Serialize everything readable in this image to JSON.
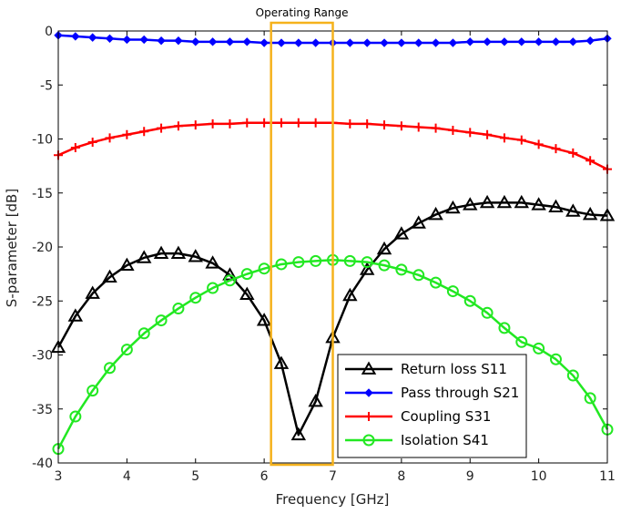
{
  "chart_data": {
    "type": "line",
    "title": "",
    "xlabel": "Frequency [GHz]",
    "ylabel": "S-parameter [dB]",
    "xlim": [
      3,
      11
    ],
    "ylim": [
      -40,
      0
    ],
    "xticks": [
      3,
      4,
      5,
      6,
      7,
      8,
      9,
      10,
      11
    ],
    "yticks": [
      0,
      -5,
      -10,
      -15,
      -20,
      -25,
      -30,
      -35,
      -40
    ],
    "grid": false,
    "legend_position": "bottom-right",
    "annotation": {
      "label": "Operating Range",
      "x_range": [
        6.1,
        7.0
      ],
      "color": "#f5b21c"
    },
    "series": [
      {
        "name": "Return loss S11",
        "color": "#000000",
        "marker": "triangle",
        "x": [
          3.0,
          3.25,
          3.5,
          3.75,
          4.0,
          4.25,
          4.5,
          4.75,
          5.0,
          5.25,
          5.5,
          5.75,
          6.0,
          6.25,
          6.5,
          6.75,
          7.0,
          7.25,
          7.5,
          7.75,
          8.0,
          8.25,
          8.5,
          8.75,
          9.0,
          9.25,
          9.5,
          9.75,
          10.0,
          10.25,
          10.5,
          10.75,
          11.0
        ],
        "y": [
          -29.3,
          -26.4,
          -24.3,
          -22.8,
          -21.7,
          -21.0,
          -20.6,
          -20.6,
          -20.9,
          -21.5,
          -22.6,
          -24.4,
          -26.8,
          -30.8,
          -37.4,
          -34.3,
          -28.4,
          -24.5,
          -22.1,
          -20.2,
          -18.8,
          -17.8,
          -17.0,
          -16.4,
          -16.1,
          -15.9,
          -15.9,
          -15.9,
          -16.1,
          -16.3,
          -16.7,
          -17.0,
          -17.1
        ]
      },
      {
        "name": "Pass through S21",
        "color": "#0000ff",
        "marker": "diamond",
        "x": [
          3.0,
          3.25,
          3.5,
          3.75,
          4.0,
          4.25,
          4.5,
          4.75,
          5.0,
          5.25,
          5.5,
          5.75,
          6.0,
          6.25,
          6.5,
          6.75,
          7.0,
          7.25,
          7.5,
          7.75,
          8.0,
          8.25,
          8.5,
          8.75,
          9.0,
          9.25,
          9.5,
          9.75,
          10.0,
          10.25,
          10.5,
          10.75,
          11.0
        ],
        "y": [
          -0.4,
          -0.5,
          -0.6,
          -0.7,
          -0.8,
          -0.8,
          -0.9,
          -0.9,
          -1.0,
          -1.0,
          -1.0,
          -1.0,
          -1.1,
          -1.1,
          -1.1,
          -1.1,
          -1.1,
          -1.1,
          -1.1,
          -1.1,
          -1.1,
          -1.1,
          -1.1,
          -1.1,
          -1.0,
          -1.0,
          -1.0,
          -1.0,
          -1.0,
          -1.0,
          -1.0,
          -0.9,
          -0.7
        ]
      },
      {
        "name": "Coupling S31",
        "color": "#ff0000",
        "marker": "plus",
        "x": [
          3.0,
          3.25,
          3.5,
          3.75,
          4.0,
          4.25,
          4.5,
          4.75,
          5.0,
          5.25,
          5.5,
          5.75,
          6.0,
          6.25,
          6.5,
          6.75,
          7.0,
          7.25,
          7.5,
          7.75,
          8.0,
          8.25,
          8.5,
          8.75,
          9.0,
          9.25,
          9.5,
          9.75,
          10.0,
          10.25,
          10.5,
          10.75,
          11.0
        ],
        "y": [
          -11.5,
          -10.8,
          -10.3,
          -9.9,
          -9.6,
          -9.3,
          -9.0,
          -8.8,
          -8.7,
          -8.6,
          -8.6,
          -8.5,
          -8.5,
          -8.5,
          -8.5,
          -8.5,
          -8.5,
          -8.6,
          -8.6,
          -8.7,
          -8.8,
          -8.9,
          -9.0,
          -9.2,
          -9.4,
          -9.6,
          -9.9,
          -10.1,
          -10.5,
          -10.9,
          -11.3,
          -12.0,
          -12.8
        ]
      },
      {
        "name": "Isolation S41",
        "color": "#22e822",
        "marker": "circle",
        "x": [
          3.0,
          3.25,
          3.5,
          3.75,
          4.0,
          4.25,
          4.5,
          4.75,
          5.0,
          5.25,
          5.5,
          5.75,
          6.0,
          6.25,
          6.5,
          6.75,
          7.0,
          7.25,
          7.5,
          7.75,
          8.0,
          8.25,
          8.5,
          8.75,
          9.0,
          9.25,
          9.5,
          9.75,
          10.0,
          10.25,
          10.5,
          10.75,
          11.0
        ],
        "y": [
          -38.7,
          -35.7,
          -33.3,
          -31.2,
          -29.5,
          -28.0,
          -26.8,
          -25.7,
          -24.7,
          -23.8,
          -23.1,
          -22.5,
          -22.0,
          -21.6,
          -21.4,
          -21.3,
          -21.2,
          -21.3,
          -21.4,
          -21.7,
          -22.1,
          -22.6,
          -23.3,
          -24.1,
          -25.0,
          -26.1,
          -27.5,
          -28.8,
          -29.4,
          -30.4,
          -31.9,
          -34.0,
          -36.9
        ]
      }
    ]
  }
}
